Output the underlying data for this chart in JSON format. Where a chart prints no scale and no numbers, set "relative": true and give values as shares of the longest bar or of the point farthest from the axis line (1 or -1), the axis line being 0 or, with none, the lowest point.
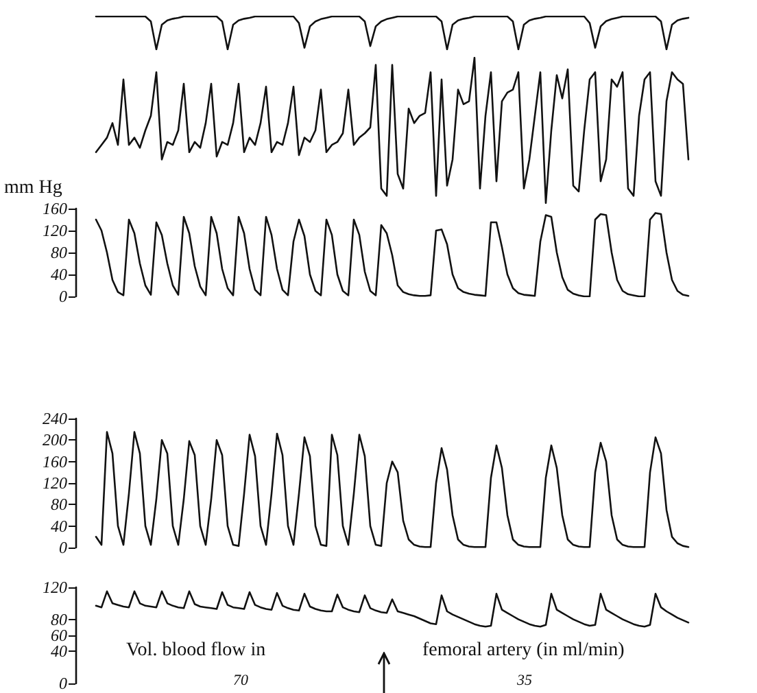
{
  "chart_data": [
    {
      "type": "line",
      "relative": true,
      "tick_labels": false,
      "line_style": "solid",
      "categories": [
        null,
        null,
        null,
        null,
        null,
        null,
        null,
        null,
        null,
        null,
        null,
        null,
        null,
        null,
        null,
        null,
        null,
        null,
        null,
        null,
        null,
        null,
        null,
        null,
        null,
        null,
        null,
        null,
        null,
        null,
        null,
        null,
        null,
        null,
        null,
        null,
        null,
        null,
        null,
        null,
        null,
        null,
        null,
        null,
        null,
        null,
        null,
        null,
        null,
        null,
        null,
        null,
        null,
        null,
        null,
        null,
        null,
        null,
        null,
        null,
        null,
        null,
        null,
        null,
        null,
        null,
        null,
        null,
        null,
        null,
        null,
        null,
        null,
        null,
        null,
        null,
        null,
        null,
        null,
        null,
        null,
        null,
        null,
        null,
        null,
        null,
        null,
        null,
        null,
        null,
        null,
        null,
        null,
        null,
        null,
        null,
        null,
        null,
        null,
        null,
        null,
        null,
        null,
        null,
        null,
        null,
        null,
        null,
        null
      ],
      "series": [
        {
          "color": "#111111",
          "values": [
            1,
            1,
            1,
            1,
            1,
            1,
            1,
            1,
            1,
            1,
            0.85,
            0,
            0.75,
            0.88,
            0.93,
            0.96,
            1,
            1,
            1,
            1,
            1,
            1,
            1,
            0.85,
            0,
            0.75,
            0.88,
            0.93,
            0.96,
            1,
            1,
            1,
            1,
            1,
            1,
            1,
            1,
            0.8,
            0.05,
            0.7,
            0.85,
            0.92,
            0.96,
            1,
            1,
            1,
            1,
            1,
            1,
            0.85,
            0.1,
            0.7,
            0.85,
            0.92,
            0.96,
            1,
            1,
            1,
            1,
            1,
            1,
            1,
            1,
            0.85,
            0,
            0.75,
            0.88,
            0.93,
            0.96,
            1,
            1,
            1,
            1,
            1,
            1,
            1,
            0.85,
            0,
            0.75,
            0.88,
            0.93,
            0.96,
            1,
            1,
            1,
            1,
            1,
            1,
            1,
            1,
            0.8,
            0.05,
            0.7,
            0.86,
            0.92,
            0.96,
            1,
            1,
            1,
            1,
            1,
            1,
            1,
            0.85,
            0,
            0.75,
            0.88,
            0.93,
            0.96
          ]
        }
      ]
    },
    {
      "type": "line",
      "relative": true,
      "tick_labels": false,
      "line_style": "solid",
      "categories": [
        null,
        null,
        null,
        null,
        null,
        null,
        null,
        null,
        null,
        null,
        null,
        null,
        null,
        null,
        null,
        null,
        null,
        null,
        null,
        null,
        null,
        null,
        null,
        null,
        null,
        null,
        null,
        null,
        null,
        null,
        null,
        null,
        null,
        null,
        null,
        null,
        null,
        null,
        null,
        null,
        null,
        null,
        null,
        null,
        null,
        null,
        null,
        null,
        null,
        null,
        null,
        null,
        null,
        null,
        null,
        null,
        null,
        null,
        null,
        null,
        null,
        null,
        null,
        null,
        null,
        null,
        null,
        null,
        null,
        null,
        null,
        null,
        null,
        null,
        null,
        null,
        null,
        null,
        null,
        null,
        null,
        null,
        null,
        null,
        null,
        null,
        null,
        null,
        null,
        null,
        null,
        null,
        null,
        null,
        null,
        null,
        null,
        null,
        null,
        null,
        null,
        null,
        null,
        null,
        null,
        null,
        null,
        null,
        null
      ],
      "series": [
        {
          "color": "#111111",
          "values": [
            0.35,
            0.4,
            0.45,
            0.55,
            0.4,
            0.85,
            0.4,
            0.45,
            0.38,
            0.5,
            0.6,
            0.9,
            0.3,
            0.42,
            0.4,
            0.5,
            0.82,
            0.35,
            0.42,
            0.38,
            0.55,
            0.82,
            0.32,
            0.42,
            0.4,
            0.55,
            0.82,
            0.35,
            0.45,
            0.4,
            0.55,
            0.8,
            0.35,
            0.42,
            0.4,
            0.55,
            0.8,
            0.33,
            0.45,
            0.42,
            0.5,
            0.78,
            0.35,
            0.4,
            0.42,
            0.48,
            0.78,
            0.4,
            0.45,
            0.48,
            0.52,
            0.95,
            0.1,
            0.05,
            0.95,
            0.2,
            0.1,
            0.65,
            0.55,
            0.6,
            0.62,
            0.9,
            0.05,
            0.85,
            0.12,
            0.3,
            0.78,
            0.68,
            0.7,
            1,
            0.1,
            0.6,
            0.9,
            0.15,
            0.7,
            0.76,
            0.78,
            0.9,
            0.1,
            0.3,
            0.6,
            0.9,
            0,
            0.5,
            0.88,
            0.72,
            0.92,
            0.12,
            0.08,
            0.5,
            0.85,
            0.9,
            0.15,
            0.3,
            0.85,
            0.8,
            0.9,
            0.1,
            0.05,
            0.6,
            0.85,
            0.9,
            0.15,
            0.05,
            0.7,
            0.9,
            0.85,
            0.82,
            0.3
          ]
        }
      ]
    },
    {
      "type": "line",
      "ylabel": "mm Hg",
      "ylim": [
        0,
        160
      ],
      "yticks": [
        0,
        40,
        80,
        120,
        160
      ],
      "tick_labels": "y",
      "line_style": "solid",
      "categories": [
        null,
        null,
        null,
        null,
        null,
        null,
        null,
        null,
        null,
        null,
        null,
        null,
        null,
        null,
        null,
        null,
        null,
        null,
        null,
        null,
        null,
        null,
        null,
        null,
        null,
        null,
        null,
        null,
        null,
        null,
        null,
        null,
        null,
        null,
        null,
        null,
        null,
        null,
        null,
        null,
        null,
        null,
        null,
        null,
        null,
        null,
        null,
        null,
        null,
        null,
        null,
        null,
        null,
        null,
        null,
        null,
        null,
        null,
        null,
        null,
        null,
        null,
        null,
        null,
        null,
        null,
        null,
        null,
        null,
        null,
        null,
        null,
        null,
        null,
        null,
        null,
        null,
        null,
        null,
        null,
        null,
        null,
        null,
        null,
        null,
        null,
        null,
        null,
        null,
        null,
        null,
        null,
        null,
        null,
        null,
        null,
        null,
        null,
        null,
        null,
        null,
        null,
        null,
        null,
        null,
        null,
        null,
        null,
        null
      ],
      "series": [
        {
          "color": "#111111",
          "values": [
            140,
            120,
            80,
            30,
            8,
            2,
            140,
            115,
            60,
            20,
            3,
            135,
            112,
            60,
            20,
            3,
            145,
            115,
            55,
            18,
            2,
            145,
            115,
            50,
            15,
            2,
            145,
            115,
            50,
            12,
            2,
            145,
            112,
            50,
            12,
            2,
            100,
            140,
            110,
            40,
            10,
            2,
            140,
            112,
            40,
            10,
            2,
            140,
            112,
            45,
            10,
            2,
            130,
            115,
            75,
            20,
            8,
            4,
            2,
            1,
            1,
            2,
            120,
            122,
            95,
            40,
            15,
            8,
            5,
            3,
            2,
            1,
            135,
            135,
            90,
            40,
            15,
            6,
            3,
            2,
            1,
            100,
            148,
            145,
            80,
            35,
            12,
            5,
            2,
            0,
            0,
            140,
            150,
            148,
            80,
            30,
            10,
            4,
            2,
            0,
            0,
            140,
            152,
            150,
            80,
            30,
            10,
            3,
            1
          ]
        }
      ]
    },
    {
      "type": "line",
      "ylim": [
        0,
        240
      ],
      "yticks": [
        0,
        40,
        80,
        120,
        160,
        200,
        240
      ],
      "tick_labels": "y",
      "line_style": "solid",
      "categories": [
        null,
        null,
        null,
        null,
        null,
        null,
        null,
        null,
        null,
        null,
        null,
        null,
        null,
        null,
        null,
        null,
        null,
        null,
        null,
        null,
        null,
        null,
        null,
        null,
        null,
        null,
        null,
        null,
        null,
        null,
        null,
        null,
        null,
        null,
        null,
        null,
        null,
        null,
        null,
        null,
        null,
        null,
        null,
        null,
        null,
        null,
        null,
        null,
        null,
        null,
        null,
        null,
        null,
        null,
        null,
        null,
        null,
        null,
        null,
        null,
        null,
        null,
        null,
        null,
        null,
        null,
        null,
        null,
        null,
        null,
        null,
        null,
        null,
        null,
        null,
        null,
        null,
        null,
        null,
        null,
        null,
        null,
        null,
        null,
        null,
        null,
        null,
        null,
        null,
        null,
        null,
        null,
        null,
        null,
        null,
        null,
        null,
        null,
        null,
        null,
        null,
        null,
        null,
        null,
        null,
        null,
        null,
        null,
        null
      ],
      "series": [
        {
          "color": "#111111",
          "values": [
            20,
            5,
            215,
            175,
            40,
            5,
            100,
            215,
            175,
            40,
            5,
            90,
            200,
            175,
            40,
            5,
            90,
            198,
            172,
            40,
            5,
            90,
            200,
            172,
            40,
            5,
            3,
            100,
            210,
            170,
            40,
            5,
            100,
            212,
            172,
            40,
            5,
            100,
            205,
            170,
            40,
            5,
            3,
            210,
            172,
            40,
            5,
            100,
            210,
            170,
            40,
            5,
            3,
            120,
            160,
            140,
            50,
            15,
            5,
            2,
            1,
            1,
            120,
            185,
            145,
            60,
            15,
            5,
            2,
            1,
            1,
            1,
            130,
            190,
            148,
            60,
            15,
            5,
            2,
            1,
            1,
            1,
            130,
            190,
            148,
            60,
            15,
            5,
            2,
            1,
            1,
            140,
            195,
            160,
            60,
            15,
            5,
            2,
            1,
            1,
            1,
            140,
            205,
            175,
            70,
            20,
            8,
            3,
            1
          ]
        }
      ]
    },
    {
      "type": "line",
      "ylim": [
        0,
        120
      ],
      "yticks": [
        0,
        40,
        60,
        80,
        120
      ],
      "tick_labels": "y",
      "line_style": "solid",
      "annotations": [
        "Vol. blood flow in",
        "femoral artery (in ml/min)",
        "70",
        "35"
      ],
      "categories": [
        null,
        null,
        null,
        null,
        null,
        null,
        null,
        null,
        null,
        null,
        null,
        null,
        null,
        null,
        null,
        null,
        null,
        null,
        null,
        null,
        null,
        null,
        null,
        null,
        null,
        null,
        null,
        null,
        null,
        null,
        null,
        null,
        null,
        null,
        null,
        null,
        null,
        null,
        null,
        null,
        null,
        null,
        null,
        null,
        null,
        null,
        null,
        null,
        null,
        null,
        null,
        null,
        null,
        null,
        null,
        null,
        null,
        null,
        null,
        null,
        null,
        null,
        null,
        null,
        null,
        null,
        null,
        null,
        null,
        null,
        null,
        null,
        null,
        null,
        null,
        null,
        null,
        null,
        null,
        null,
        null,
        null,
        null,
        null,
        null,
        null,
        null,
        null,
        null,
        null,
        null,
        null,
        null,
        null,
        null,
        null,
        null,
        null,
        null,
        null,
        null,
        null,
        null,
        null,
        null,
        null,
        null,
        null,
        null
      ],
      "series": [
        {
          "color": "#111111",
          "values": [
            97,
            95,
            115,
            100,
            98,
            96,
            95,
            115,
            100,
            97,
            96,
            95,
            115,
            100,
            97,
            95,
            94,
            115,
            99,
            96,
            95,
            94,
            93,
            114,
            98,
            95,
            94,
            93,
            114,
            98,
            95,
            93,
            92,
            113,
            97,
            94,
            92,
            91,
            112,
            96,
            93,
            91,
            90,
            90,
            111,
            95,
            92,
            90,
            89,
            110,
            94,
            91,
            89,
            88,
            105,
            90,
            88,
            86,
            84,
            81,
            78,
            75,
            74,
            110,
            90,
            86,
            83,
            80,
            77,
            74,
            72,
            71,
            72,
            112,
            92,
            88,
            84,
            80,
            77,
            74,
            72,
            71,
            73,
            112,
            92,
            88,
            84,
            80,
            77,
            74,
            72,
            73,
            112,
            92,
            88,
            84,
            80,
            77,
            74,
            72,
            71,
            73,
            112,
            95,
            90,
            86,
            82,
            79,
            76
          ]
        }
      ]
    }
  ]
}
